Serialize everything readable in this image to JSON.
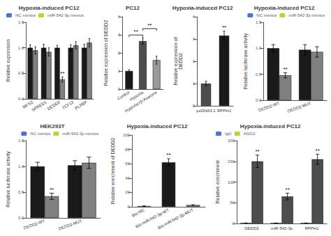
{
  "chart_data": [
    {
      "type": "bar",
      "title": "Hypoxia-induced PC12",
      "categories": [
        "MFN2",
        "SPRED1",
        "DEDD2",
        "TCF12",
        "PLPBP"
      ],
      "series": [
        {
          "name": "NC mimics",
          "color": "#1a1a1a",
          "values": [
            1.0,
            1.0,
            1.0,
            1.0,
            1.0
          ],
          "errors": [
            0.06,
            0.07,
            0.05,
            0.06,
            0.07
          ]
        },
        {
          "name": "miR-542-3p mimics",
          "color": "#808080",
          "values": [
            0.95,
            0.92,
            0.38,
            1.05,
            1.1
          ],
          "errors": [
            0.07,
            0.08,
            0.05,
            0.07,
            0.08
          ]
        }
      ],
      "ylabel": "Relative expression",
      "ylim": [
        0.0,
        1.5
      ],
      "yticks": [
        {
          "value": 0,
          "label": "0.0"
        },
        0.5,
        {
          "value": 1,
          "label": "1.0"
        },
        1.5
      ],
      "legend": "upper left",
      "grid": false,
      "annotations": [
        {
          "text": "**",
          "category": "DEDD2",
          "series": "miR-542-3p mimics"
        }
      ]
    },
    {
      "type": "bar",
      "title": "PC12",
      "categories": [
        "Control",
        "Hypoxia",
        "Hypoxia+β-Asarone"
      ],
      "values": [
        1.0,
        2.65,
        1.6
      ],
      "errors": [
        0.07,
        0.18,
        0.22
      ],
      "colors": [
        "#1a1a1a",
        "#4d4d4d",
        "#999999"
      ],
      "ylabel": "Relative expression of DEDD2",
      "ylim": [
        0,
        4
      ],
      "yticks": [
        0,
        1,
        2,
        3,
        4
      ],
      "grid": false,
      "annotations": [
        {
          "text": "**",
          "from": "Control",
          "to": "Hypoxia"
        },
        {
          "text": "**",
          "from": "Hypoxia",
          "to": "Hypoxia+β-Asarone"
        }
      ]
    },
    {
      "type": "bar",
      "title": "Hypoxia-induced PC12",
      "categories": [
        "pcDNA3.1",
        "RPPH1"
      ],
      "values": [
        1.0,
        3.15
      ],
      "errors": [
        0.1,
        0.2
      ],
      "colors": [
        "#4d4d4d",
        "#1a1a1a"
      ],
      "ylabel": "Relative expression of\nDEDD2",
      "ylim": [
        0,
        4
      ],
      "yticks": [
        0,
        1,
        2,
        3,
        4
      ],
      "grid": false,
      "annotations": [
        {
          "text": "**",
          "category": "RPPH1"
        }
      ]
    },
    {
      "type": "bar",
      "title": "Hypoxia-induced PC12",
      "categories": [
        "DEDD2-WT",
        "DEDD2-MUT"
      ],
      "series": [
        {
          "name": "NC mimics",
          "color": "#1a1a1a",
          "values": [
            1.0,
            0.97
          ],
          "errors": [
            0.07,
            0.1
          ]
        },
        {
          "name": "miR-542-3p mimics",
          "color": "#808080",
          "values": [
            0.48,
            0.93
          ],
          "errors": [
            0.05,
            0.1
          ]
        }
      ],
      "ylabel": "Relative luciferase activity",
      "ylim": [
        0,
        1.5
      ],
      "yticks": [
        {
          "value": 0,
          "label": "0.0"
        },
        0.5,
        {
          "value": 1.0,
          "label": "1.0"
        },
        1.5
      ],
      "legend": "upper right",
      "grid": false,
      "annotations": [
        {
          "text": "**",
          "category": "DEDD2-WT",
          "series": "miR-542-3p mimics"
        }
      ]
    },
    {
      "type": "bar",
      "title": "HEK293T",
      "categories": [
        "DEDD2-WT",
        "DEDD2-MUT"
      ],
      "series": [
        {
          "name": "NC mimics",
          "color": "#1a1a1a",
          "values": [
            1.0,
            1.02
          ],
          "errors": [
            0.08,
            0.09
          ]
        },
        {
          "name": "miR-542-3p mimics",
          "color": "#808080",
          "values": [
            0.42,
            1.07
          ],
          "errors": [
            0.06,
            0.11
          ]
        }
      ],
      "ylabel": "Relative luciferase activity",
      "ylim": [
        0,
        1.5
      ],
      "yticks": [
        {
          "value": 0,
          "label": "0.0"
        },
        0.5,
        {
          "value": 1.0,
          "label": "1.0"
        },
        1.5
      ],
      "legend": "upper right",
      "grid": false,
      "annotations": [
        {
          "text": "**",
          "category": "DEDD2-WT",
          "series": "miR-542-3p mimics"
        }
      ]
    },
    {
      "type": "bar",
      "title": "Hypoxia-induced PC12",
      "categories": [
        "Bio-NC",
        "Bio-miR-542-3p-WT",
        "Bio-miR-542-3p-MUT"
      ],
      "values": [
        1.0,
        62.0,
        2.5
      ],
      "errors": [
        0.15,
        5.0,
        0.3
      ],
      "colors": [
        "white",
        "#1a1a1a",
        "#888888"
      ],
      "ylabel": "Relative enrichment of DEDD2",
      "ylim": [
        0,
        100
      ],
      "yticks": [
        0,
        20,
        40,
        60,
        80,
        100
      ],
      "grid": false,
      "annotations": [
        {
          "text": "**",
          "category": "Bio-miR-542-3p-WT"
        }
      ]
    },
    {
      "type": "bar",
      "title": "Hypoxia-induced PC12",
      "categories": [
        "DEDD2",
        "miR-542-3p",
        "RPPH1"
      ],
      "series": [
        {
          "name": "IgG",
          "color": "#d0d0d0",
          "values": [
            1.0,
            1.0,
            1.0
          ],
          "errors": [
            0.1,
            0.1,
            0.1
          ]
        },
        {
          "name": "AGO2",
          "color": "#4d4d4d",
          "values": [
            150.0,
            65.0,
            155.0
          ],
          "errors": [
            15.0,
            8.0,
            12.0
          ]
        }
      ],
      "ylabel": "Relative enrichment",
      "ylim": [
        0,
        200
      ],
      "yticks": [
        0,
        50,
        100,
        150,
        200
      ],
      "legend": "upper left",
      "grid": false,
      "annotations": [
        {
          "text": "**",
          "category": "DEDD2",
          "series": "AGO2"
        },
        {
          "text": "**",
          "category": "miR-542-3p",
          "series": "AGO2"
        },
        {
          "text": "**",
          "category": "RPPH1",
          "series": "AGO2"
        }
      ]
    }
  ]
}
